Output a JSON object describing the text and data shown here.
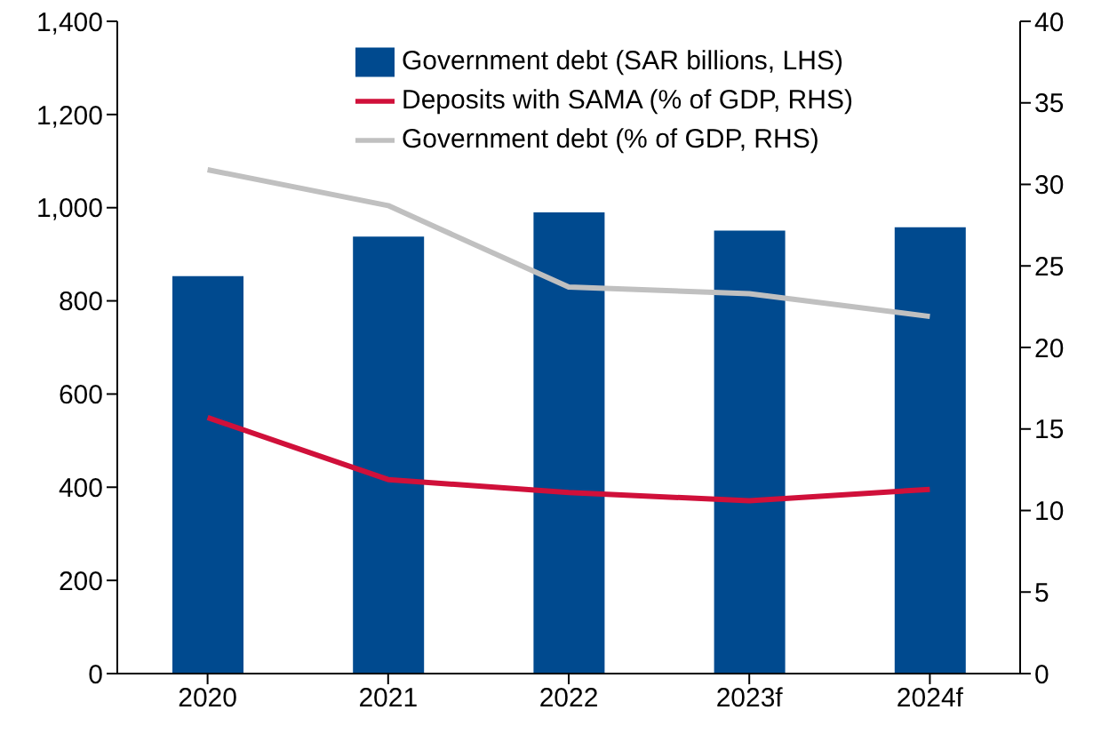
{
  "chart_data": {
    "type": "bar",
    "categories": [
      "2020",
      "2021",
      "2022",
      "2023f",
      "2024f"
    ],
    "series": [
      {
        "name": "Government debt (SAR billions, LHS)",
        "color": "#004a8f",
        "values": [
          853,
          938,
          990,
          951,
          958
        ]
      },
      {
        "name": "Deposits with SAMA (% of GDP, RHS)",
        "type": "line",
        "axis": "y2",
        "color": "#d0103a",
        "values": [
          15.7,
          11.9,
          11.1,
          10.6,
          11.3
        ]
      },
      {
        "name": "Government debt (% of GDP, RHS)",
        "type": "line",
        "axis": "y2",
        "color": "#c0c0c0",
        "values": [
          30.9,
          28.7,
          23.7,
          23.3,
          21.9
        ]
      }
    ],
    "ylim": [
      0,
      1400
    ],
    "yticks": [
      0,
      200,
      400,
      600,
      800,
      {
        "value": 1000,
        "label": "1,000"
      },
      {
        "value": 1200,
        "label": "1,200"
      },
      {
        "value": 1400,
        "label": "1,400"
      }
    ],
    "y2lim": [
      0,
      40
    ],
    "y2ticks": [
      0,
      5,
      10,
      15,
      20,
      25,
      30,
      35,
      40
    ],
    "grid": false,
    "legend": "top right",
    "marker": "none",
    "line_style": "solid"
  }
}
